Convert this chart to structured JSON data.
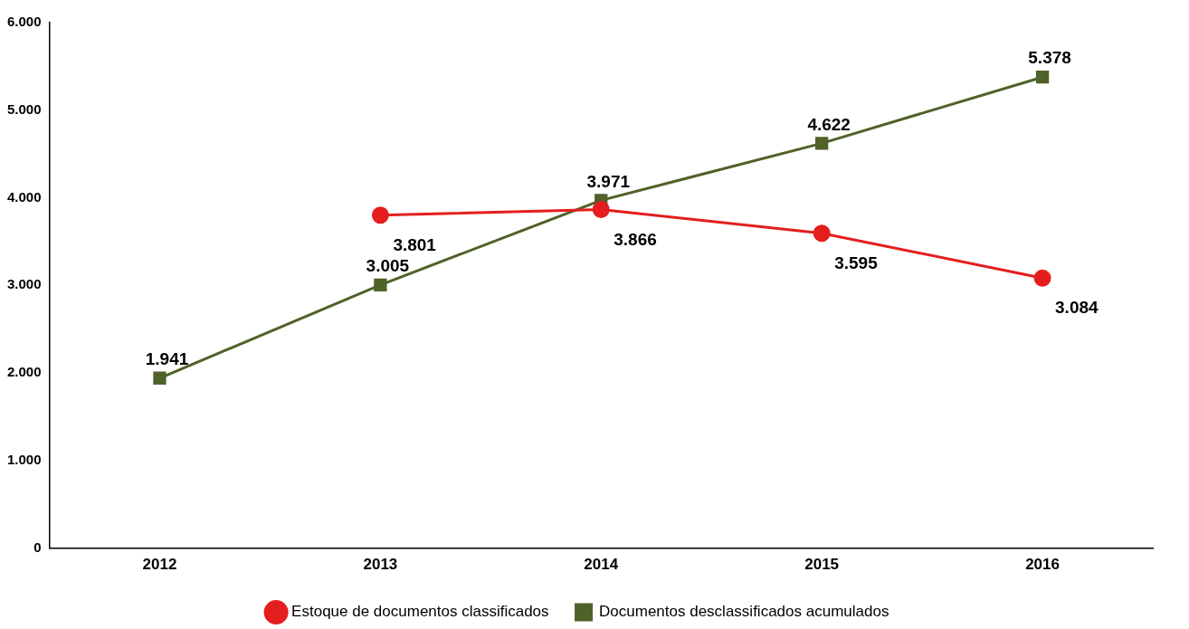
{
  "chart_data": {
    "type": "line",
    "categories": [
      "2012",
      "2013",
      "2014",
      "2015",
      "2016"
    ],
    "series": [
      {
        "name": "Estoque de documentos classificados",
        "color": "#e41e1e",
        "marker": "circle",
        "values": [
          null,
          3801,
          3866,
          3595,
          3084
        ],
        "value_labels": [
          null,
          "3.801",
          "3.866",
          "3.595",
          "3.084"
        ]
      },
      {
        "name": "Documentos desclassificados acumulados",
        "color": "#4f6228",
        "marker": "square",
        "values": [
          1941,
          3005,
          3971,
          4622,
          5378
        ],
        "value_labels": [
          "1.941",
          "3.005",
          "3.971",
          "4.622",
          "5.378"
        ]
      }
    ],
    "ylim": [
      0,
      6000
    ],
    "yticks": [
      0,
      {
        "value": 1000,
        "label": "1.000"
      },
      {
        "value": 2000,
        "label": "2.000"
      },
      {
        "value": 3000,
        "label": "3.000"
      },
      {
        "value": 4000,
        "label": "4.000"
      },
      {
        "value": 5000,
        "label": "5.000"
      },
      {
        "value": 6000,
        "label": "6.000"
      }
    ],
    "grid": false,
    "legend": "bottom",
    "line_style": "solid"
  }
}
